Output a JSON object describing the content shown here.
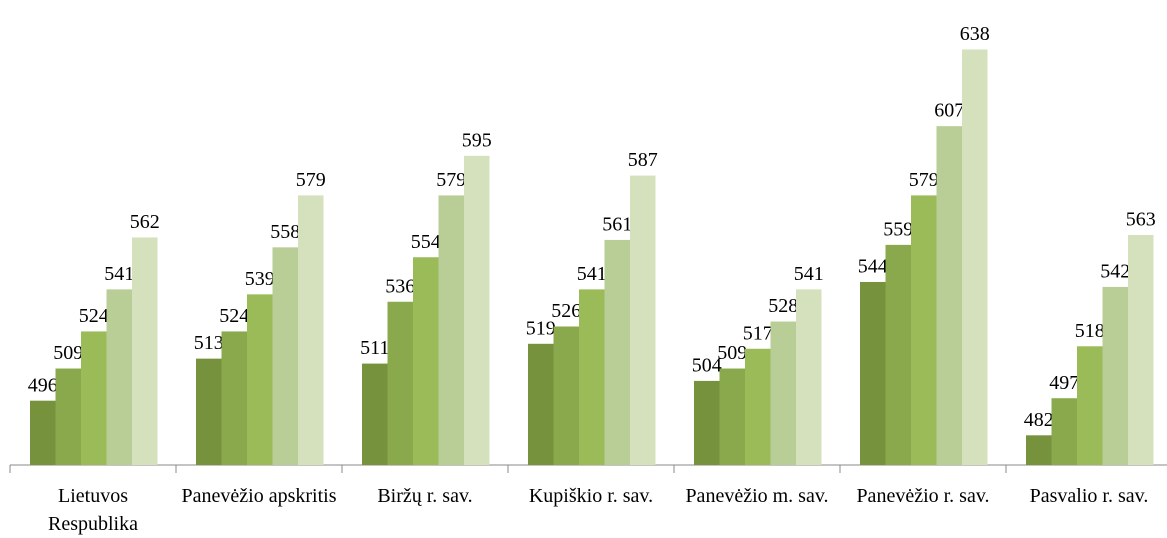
{
  "chart_data": {
    "type": "bar",
    "categories": [
      "Lietuvos Respublika",
      "Panevėžio apskritis",
      "Biržų r. sav.",
      "Kupiškio r. sav.",
      "Panevėžio m. sav.",
      "Panevėžio r. sav.",
      "Pasvalio r. sav."
    ],
    "series": [
      {
        "color": "#77923c",
        "values": [
          496,
          513,
          511,
          519,
          504,
          544,
          482
        ]
      },
      {
        "color": "#8aa84c",
        "values": [
          509,
          524,
          536,
          526,
          509,
          559,
          497
        ]
      },
      {
        "color": "#9bbb59",
        "values": [
          524,
          539,
          554,
          541,
          517,
          579,
          518
        ]
      },
      {
        "color": "#b9cd96",
        "values": [
          541,
          558,
          579,
          561,
          528,
          607,
          542
        ]
      },
      {
        "color": "#d4e1bc",
        "values": [
          562,
          579,
          595,
          587,
          541,
          638,
          563
        ]
      }
    ],
    "ylim": [
      470,
      658
    ]
  }
}
